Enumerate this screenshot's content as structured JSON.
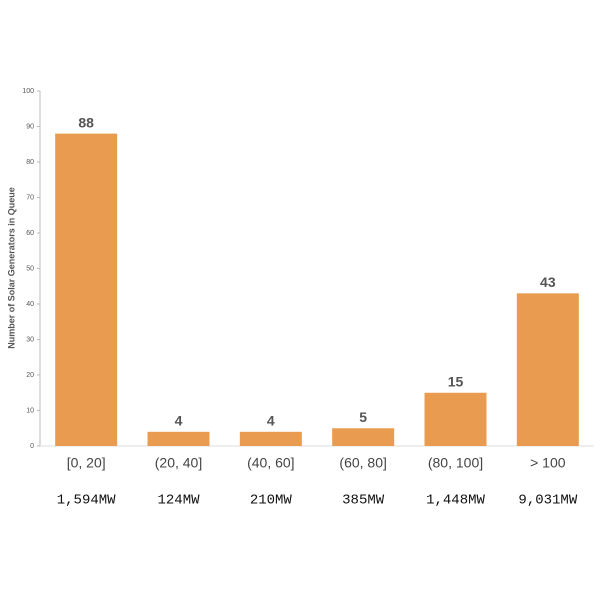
{
  "chart_data": {
    "type": "bar",
    "y_label": "Number of Solar Generators in Queue",
    "categories": [
      "[0, 20]",
      "(20, 40]",
      "(40, 60]",
      "(60, 80]",
      "(80, 100]",
      "> 100"
    ],
    "values": [
      88,
      4,
      4,
      5,
      15,
      43
    ],
    "capacity_labels": [
      "1,594MW",
      "124MW",
      "210MW",
      "385MW",
      "1,448MW",
      "9,031MW"
    ],
    "color": "#e99c50",
    "ylim": [
      0,
      100
    ],
    "yticks": [
      0,
      10,
      20,
      30,
      40,
      50,
      60,
      70,
      80,
      90,
      100
    ]
  }
}
